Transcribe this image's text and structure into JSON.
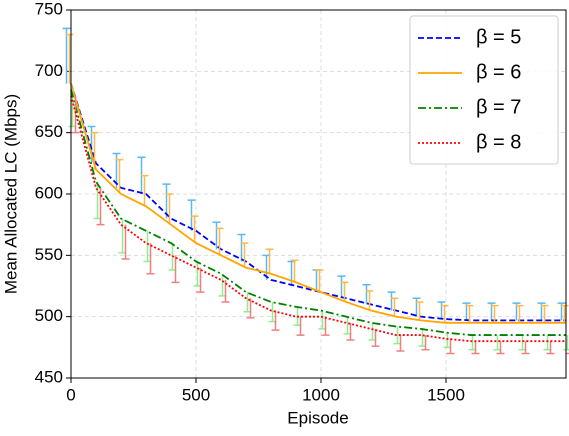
{
  "chart_data": {
    "type": "line",
    "x_label": "Episode",
    "y_label": "Mean Allocated LC (Mbps)",
    "x": [
      0,
      100,
      200,
      300,
      400,
      500,
      600,
      700,
      800,
      900,
      1000,
      1100,
      1200,
      1300,
      1400,
      1500,
      1600,
      1700,
      1800,
      1900,
      1980
    ],
    "series": [
      {
        "name": "β = 5",
        "color": "#0000ff",
        "dash": "6,3",
        "error_color": "#5bb8f0",
        "error_direction": "up",
        "values": [
          690,
          625,
          605,
          600,
          580,
          570,
          555,
          545,
          530,
          525,
          520,
          515,
          510,
          505,
          500,
          498,
          497,
          497,
          497,
          497,
          497
        ],
        "errors": [
          45,
          30,
          28,
          30,
          28,
          25,
          22,
          22,
          20,
          20,
          18,
          18,
          16,
          15,
          15,
          14,
          14,
          14,
          14,
          14,
          14
        ]
      },
      {
        "name": "β = 6",
        "color": "#ffa500",
        "dash": "",
        "error_color": "#ffb84d",
        "error_direction": "up",
        "values": [
          690,
          620,
          600,
          590,
          575,
          560,
          550,
          540,
          535,
          528,
          520,
          512,
          505,
          500,
          497,
          495,
          495,
          495,
          495,
          495,
          495
        ],
        "errors": [
          40,
          30,
          28,
          25,
          25,
          22,
          22,
          20,
          20,
          18,
          18,
          16,
          16,
          15,
          15,
          14,
          14,
          14,
          14,
          14,
          14
        ]
      },
      {
        "name": "β = 7",
        "color": "#008000",
        "dash": "8,3,2,3",
        "error_color": "#90ee90",
        "error_direction": "down",
        "values": [
          685,
          610,
          580,
          570,
          560,
          545,
          535,
          520,
          512,
          508,
          505,
          500,
          495,
          492,
          490,
          487,
          485,
          485,
          485,
          485,
          485
        ],
        "errors": [
          30,
          30,
          28,
          25,
          22,
          20,
          18,
          16,
          16,
          15,
          15,
          14,
          14,
          14,
          14,
          12,
          12,
          12,
          12,
          12,
          12
        ]
      },
      {
        "name": "β = 8",
        "color": "#ff0000",
        "dash": "2,2",
        "error_color": "#f08080",
        "error_direction": "down",
        "values": [
          680,
          605,
          575,
          560,
          550,
          540,
          530,
          515,
          505,
          500,
          500,
          495,
          490,
          485,
          485,
          482,
          480,
          480,
          480,
          480,
          480
        ],
        "errors": [
          30,
          30,
          28,
          25,
          22,
          20,
          18,
          16,
          16,
          15,
          15,
          14,
          14,
          13,
          12,
          12,
          10,
          10,
          10,
          10,
          10
        ]
      }
    ],
    "xlim": [
      0,
      1980
    ],
    "ylim": [
      450,
      750
    ],
    "xticks": [
      0,
      500,
      1000,
      1500
    ],
    "yticks": [
      450,
      500,
      550,
      600,
      650,
      700,
      750
    ],
    "grid": true,
    "legend": "upper right"
  }
}
